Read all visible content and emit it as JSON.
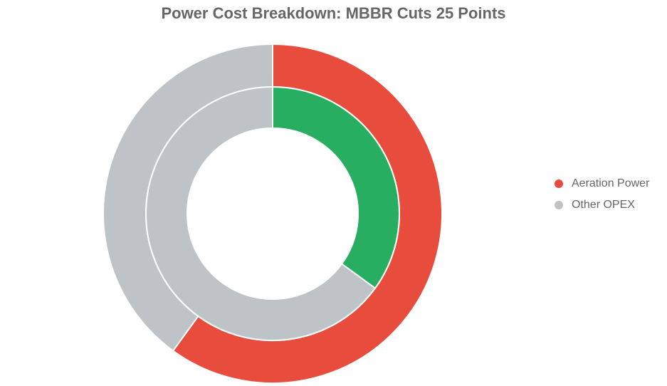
{
  "chart_data": {
    "type": "pie",
    "subtype": "nested-donut",
    "title": "Power Cost Breakdown: MBBR Cuts 25 Points",
    "legend_position": "right",
    "legend": [
      {
        "label": "Aeration Power",
        "color": "#e74c3c"
      },
      {
        "label": "Other OPEX",
        "color": "#bdc3c7"
      }
    ],
    "rings": [
      {
        "ring": "outer",
        "slices": [
          {
            "label": "Aeration Power",
            "value": 60,
            "color": "#e74c3c"
          },
          {
            "label": "Other OPEX",
            "value": 40,
            "color": "#bdc3c7"
          }
        ]
      },
      {
        "ring": "inner",
        "slices": [
          {
            "label": "Aeration Power",
            "value": 35,
            "color": "#27ae60"
          },
          {
            "label": "Other OPEX",
            "value": 65,
            "color": "#bdc3c7"
          }
        ]
      }
    ]
  }
}
